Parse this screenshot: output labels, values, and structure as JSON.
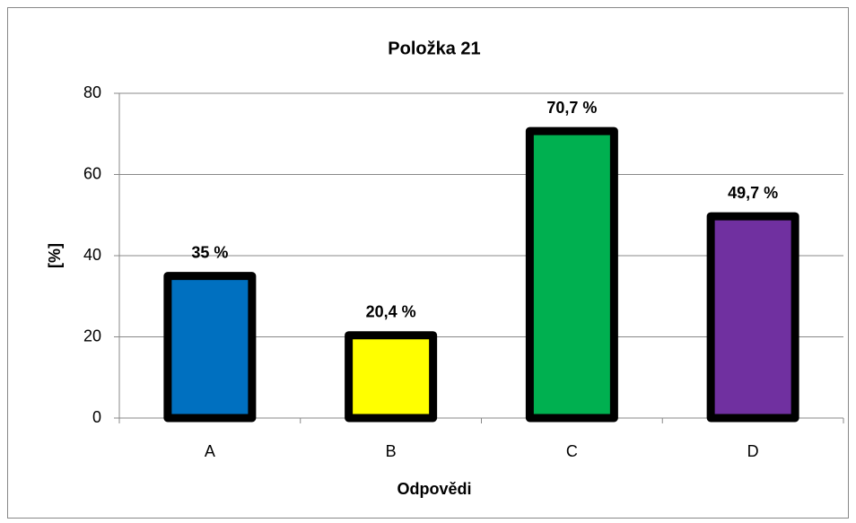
{
  "chart_data": {
    "type": "bar",
    "title": "Položka 21",
    "x_label": "Odpovědi",
    "y_label": "[%]",
    "categories": [
      "A",
      "B",
      "C",
      "D"
    ],
    "values": [
      35,
      20.4,
      70.7,
      49.7
    ],
    "value_labels": [
      "35 %",
      "20,4 %",
      "70,7 %",
      "49,7 %"
    ],
    "colors": [
      "#0070c0",
      "#ffff00",
      "#00b050",
      "#7030a0"
    ],
    "ylim": [
      0,
      80
    ],
    "yticks": [
      0,
      20,
      40,
      60,
      80
    ],
    "grid": true
  }
}
